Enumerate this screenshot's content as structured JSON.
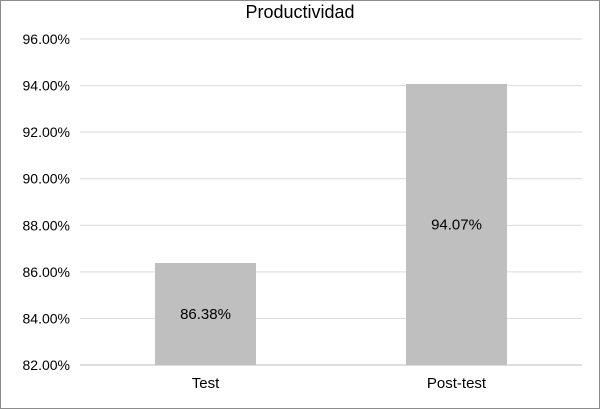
{
  "chart_data": {
    "type": "bar",
    "title": "Productividad",
    "categories": [
      "Test",
      "Post-test"
    ],
    "values": [
      86.38,
      94.07
    ],
    "data_labels": [
      "86.38%",
      "94.07%"
    ],
    "ylim": [
      82,
      96
    ],
    "yticks": [
      82,
      84,
      86,
      88,
      90,
      92,
      94,
      96
    ],
    "ytick_labels": [
      "82.00%",
      "84.00%",
      "86.00%",
      "88.00%",
      "90.00%",
      "92.00%",
      "94.00%",
      "96.00%"
    ],
    "grid": true,
    "legend": "none",
    "bar_color": "#bfbfbf",
    "grid_color": "#d9d9d9"
  }
}
